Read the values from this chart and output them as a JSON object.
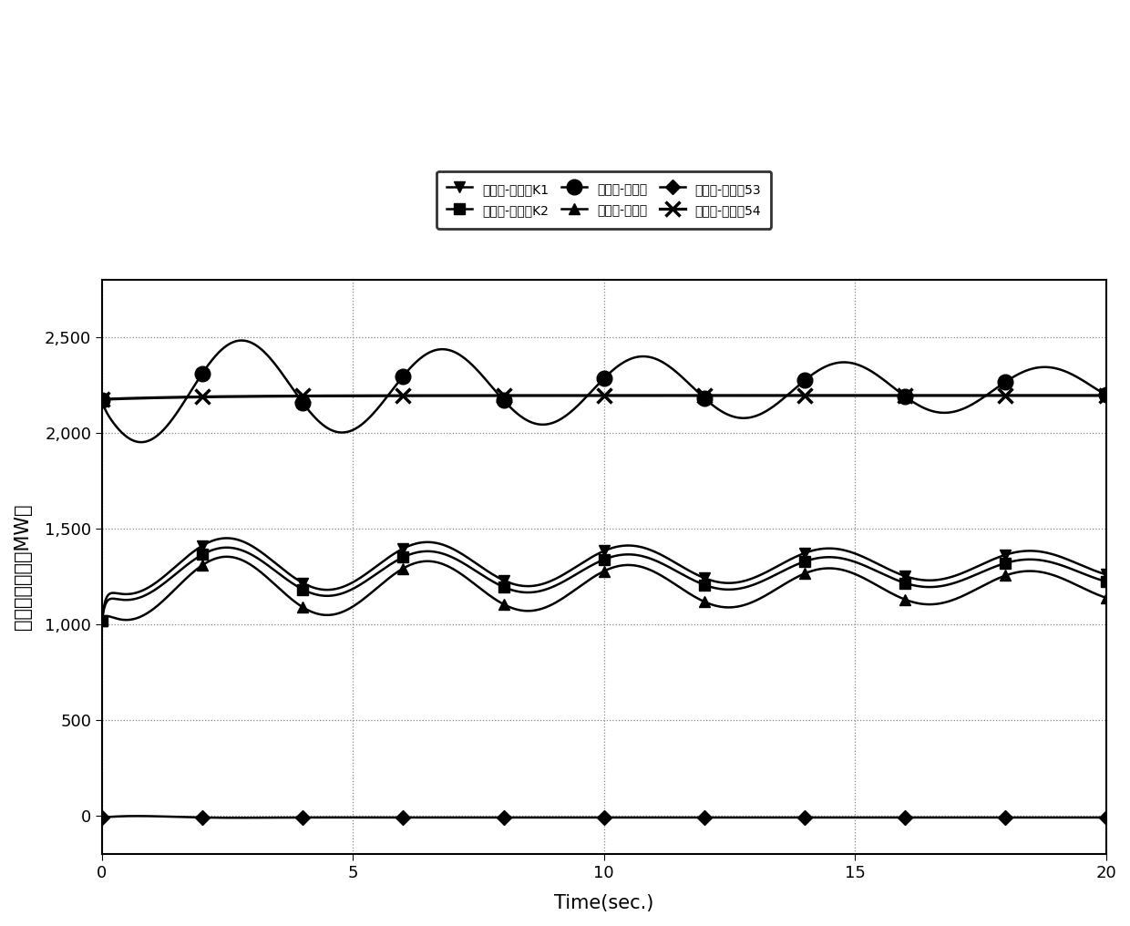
{
  "legend_labels": [
    "豫嘉和-豫嘉广K1",
    "豫嘉和-豫嘉广K2",
    "豫武周-豫涂会",
    "豫武周-豫香山",
    "豫祥符-豫花都53",
    "豫祥符-豫花都54"
  ],
  "xlabel": "Time(sec.)",
  "ylabel": "线路有功功率（MW）",
  "xlim": [
    0,
    20
  ],
  "ylim": [
    -200,
    2800
  ],
  "ytick_vals": [
    0,
    500,
    1000,
    1500,
    2000,
    2500
  ],
  "xtick_vals": [
    0,
    5,
    10,
    15,
    20
  ],
  "bg_color": "#ffffff",
  "line_color": "#000000"
}
